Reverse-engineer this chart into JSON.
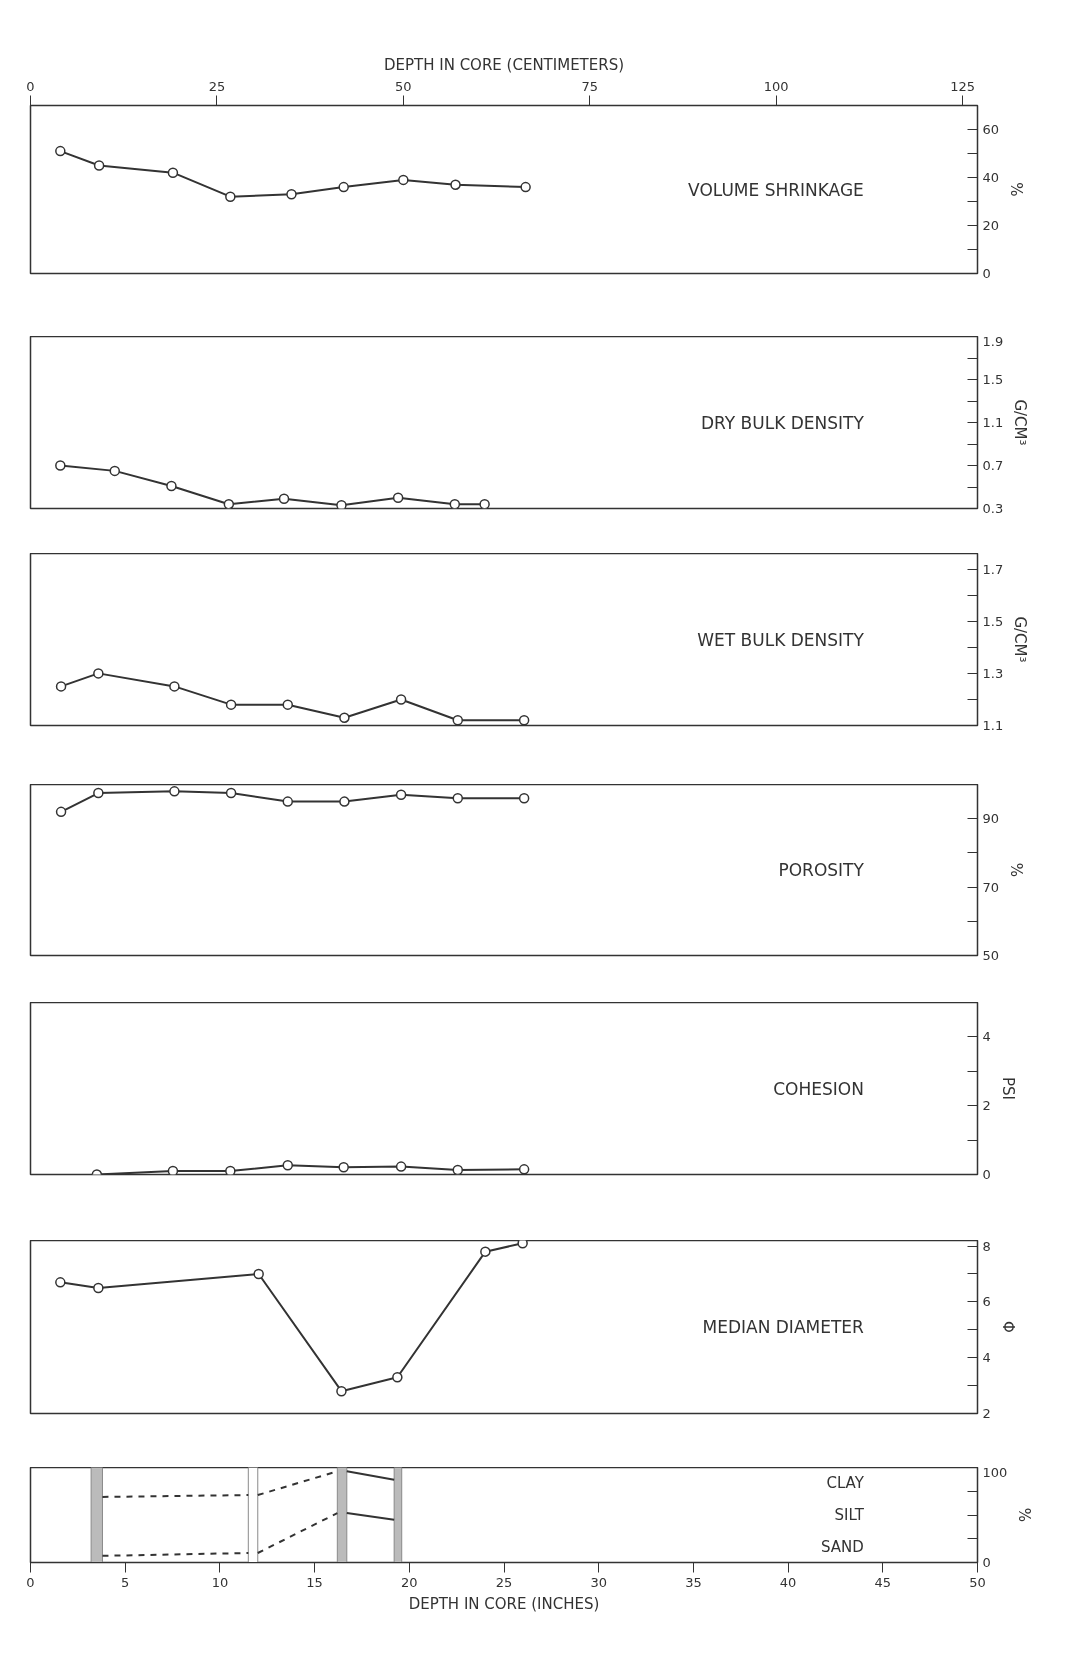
{
  "chart_data": [
    {
      "type": "line",
      "title": "VOLUME SHRINKAGE",
      "ylabel": "%",
      "xlabel": "DEPTH IN CORE (CENTIMETERS)",
      "xlim": [
        0,
        127
      ],
      "xticks": [
        0,
        25,
        50,
        75,
        100,
        125
      ],
      "ylim": [
        0,
        70
      ],
      "yticks": [
        0,
        {
          "value": 10,
          "label": null
        },
        20,
        {
          "value": 30,
          "label": null
        },
        40,
        {
          "value": 50,
          "label": null
        },
        60
      ],
      "grid": false,
      "marker": "circle",
      "line_style": "solid",
      "series": [
        {
          "color": "#333333",
          "x": [
            4.0,
            9.2,
            19.1,
            26.8,
            35.0,
            42.0,
            50.0,
            57.0,
            66.4
          ],
          "values": [
            51,
            45,
            42,
            32,
            33,
            36,
            39,
            37,
            36
          ]
        }
      ]
    },
    {
      "type": "line",
      "title": "DRY BULK DENSITY",
      "ylabel": "G/CM³",
      "xlim": [
        0,
        127
      ],
      "ylim": [
        0.3,
        1.9
      ],
      "yticks": [
        0.3,
        {
          "value": 0.5,
          "label": null
        },
        0.7,
        {
          "value": 0.9,
          "label": null
        },
        1.1,
        {
          "value": 1.3,
          "label": null
        },
        1.5,
        {
          "value": 1.7,
          "label": null
        },
        1.9
      ],
      "tick_labels": "y",
      "grid": false,
      "marker": "circle",
      "line_style": "solid",
      "series": [
        {
          "color": "#333333",
          "x": [
            4.0,
            11.3,
            18.9,
            26.6,
            34.0,
            41.7,
            49.3,
            56.9,
            60.9
          ],
          "values": [
            0.7,
            0.65,
            0.51,
            0.34,
            0.39,
            0.33,
            0.4,
            0.34,
            0.34
          ]
        }
      ]
    },
    {
      "type": "line",
      "title": "WET BULK DENSITY",
      "ylabel": "G/CM³",
      "xlim": [
        0,
        127
      ],
      "ylim": [
        1.1,
        1.76
      ],
      "yticks": [
        1.1,
        {
          "value": 1.2,
          "label": null
        },
        1.3,
        {
          "value": 1.4,
          "label": null
        },
        1.5,
        {
          "value": 1.6,
          "label": null
        },
        1.7
      ],
      "tick_labels": "y",
      "grid": false,
      "marker": "circle",
      "line_style": "solid",
      "series": [
        {
          "color": "#333333",
          "x": [
            4.1,
            9.1,
            19.3,
            26.9,
            34.5,
            42.1,
            49.7,
            57.3,
            66.2
          ],
          "values": [
            1.25,
            1.3,
            1.25,
            1.18,
            1.18,
            1.13,
            1.2,
            1.12,
            1.12
          ]
        }
      ]
    },
    {
      "type": "line",
      "title": "POROSITY",
      "ylabel": "%",
      "xlim": [
        0,
        127
      ],
      "ylim": [
        50,
        100
      ],
      "yticks": [
        50,
        {
          "value": 60,
          "label": null
        },
        70,
        {
          "value": 80,
          "label": null
        },
        90
      ],
      "tick_labels": "y",
      "grid": false,
      "marker": "circle",
      "line_style": "solid",
      "series": [
        {
          "color": "#333333",
          "x": [
            4.1,
            9.1,
            19.3,
            26.9,
            34.5,
            42.1,
            49.7,
            57.3,
            66.2
          ],
          "values": [
            92,
            97.5,
            98,
            97.5,
            95,
            95,
            97,
            96,
            96
          ]
        }
      ]
    },
    {
      "type": "line",
      "title": "COHESION",
      "ylabel": "PSI",
      "xlim": [
        0,
        127
      ],
      "ylim": [
        0,
        5
      ],
      "yticks": [
        0,
        {
          "value": 1,
          "label": null
        },
        2,
        {
          "value": 3,
          "label": null
        },
        4
      ],
      "tick_labels": "y",
      "grid": false,
      "marker": "circle",
      "line_style": "solid",
      "series": [
        {
          "color": "#333333",
          "x": [
            8.9,
            19.1,
            26.8,
            34.5,
            42.0,
            49.7,
            57.3,
            66.2
          ],
          "values": [
            0,
            0.1,
            0.1,
            0.27,
            0.21,
            0.23,
            0.13,
            0.15
          ]
        }
      ]
    },
    {
      "type": "line",
      "title": "MEDIAN DIAMETER",
      "ylabel": "Φ",
      "xlim": [
        0,
        127
      ],
      "ylim": [
        2,
        8.2
      ],
      "yticks": [
        2,
        {
          "value": 3,
          "label": null
        },
        4,
        {
          "value": 5,
          "label": null
        },
        6,
        {
          "value": 7,
          "label": null
        },
        8
      ],
      "tick_labels": "y",
      "grid": false,
      "marker": "circle",
      "line_style": "solid",
      "series": [
        {
          "color": "#333333",
          "x": [
            4.0,
            9.1,
            30.6,
            41.7,
            49.2,
            61.0,
            66.0
          ],
          "values": [
            6.7,
            6.5,
            7.0,
            2.8,
            3.3,
            7.8,
            8.1
          ]
        }
      ]
    },
    {
      "type": "line",
      "ylabel": "%",
      "xlabel": "DEPTH IN CORE (INCHES)",
      "annotations": [
        "SAND",
        "SILT",
        "CLAY"
      ],
      "xlim": [
        0,
        50
      ],
      "xticks": [
        0,
        5,
        10,
        15,
        20,
        25,
        30,
        35,
        40,
        45,
        50
      ],
      "ylim": [
        0,
        100
      ],
      "yticks": [
        0,
        {
          "value": 25,
          "label": null
        },
        {
          "value": 50,
          "label": null
        },
        {
          "value": 75,
          "label": null
        },
        100
      ],
      "grid": false,
      "marker": "none",
      "bands": [
        {
          "axis": "x",
          "from": 3.2,
          "to": 3.8,
          "color": "#bbbbbb"
        },
        {
          "axis": "x",
          "from": 11.5,
          "to": 12.0,
          "color": "#ffffff"
        },
        {
          "axis": "x",
          "from": 16.2,
          "to": 16.7,
          "color": "#bbbbbb"
        },
        {
          "axis": "x",
          "from": 19.2,
          "to": 19.6,
          "color": "#bbbbbb"
        }
      ],
      "series": [
        {
          "color": "#333333",
          "line_style": "dashed",
          "x": [
            3.8,
            11.5
          ],
          "values": [
            7,
            10
          ]
        },
        {
          "color": "#333333",
          "line_style": "dashed",
          "x": [
            12.0,
            16.2
          ],
          "values": [
            10,
            52
          ]
        },
        {
          "color": "#333333",
          "line_style": "dashed",
          "x": [
            3.8,
            11.5
          ],
          "values": [
            69,
            71
          ]
        },
        {
          "color": "#333333",
          "line_style": "dashed",
          "x": [
            12.0,
            16.2
          ],
          "values": [
            71,
            96
          ]
        },
        {
          "color": "#333333",
          "line_style": "solid",
          "x": [
            16.7,
            19.2
          ],
          "values": [
            52,
            45
          ]
        },
        {
          "color": "#333333",
          "line_style": "solid",
          "x": [
            16.7,
            19.2
          ],
          "values": [
            96,
            87
          ]
        }
      ]
    }
  ]
}
